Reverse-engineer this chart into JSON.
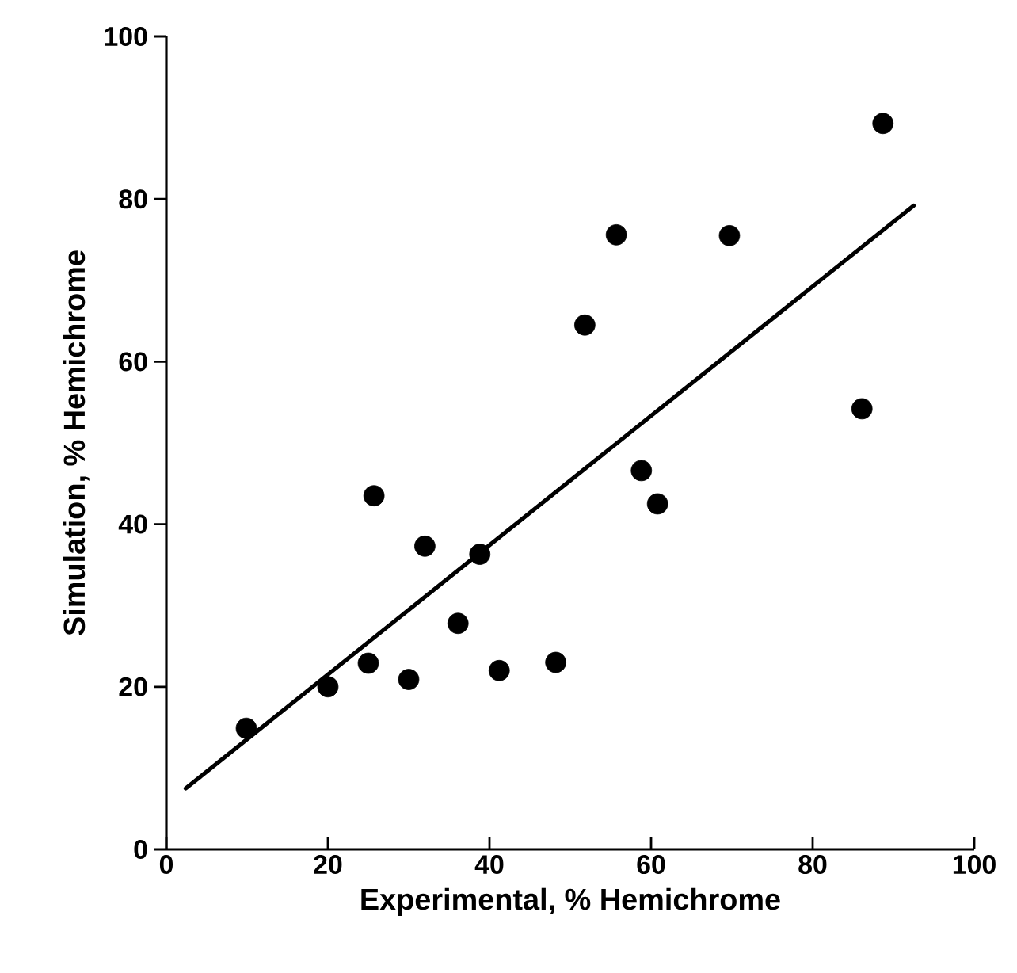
{
  "chart_data": {
    "type": "scatter",
    "xlabel": "Experimental, % Hemichrome",
    "ylabel": "Simulation, % Hemichrome",
    "xlim": [
      0,
      100
    ],
    "ylim": [
      0,
      100
    ],
    "xticks": [
      0,
      20,
      40,
      60,
      80,
      100
    ],
    "yticks": [
      0,
      20,
      40,
      60,
      80,
      100
    ],
    "series": [
      {
        "marker": "circle",
        "color": "#000000",
        "x": [
          9.9,
          20,
          25,
          25.7,
          30,
          32,
          36.1,
          38.8,
          41.2,
          48.2,
          51.8,
          55.7,
          58.8,
          60.8,
          69.7,
          86.1,
          88.7
        ],
        "values": [
          14.9,
          20,
          22.9,
          43.5,
          20.9,
          37.3,
          27.8,
          36.3,
          22.0,
          23.0,
          64.5,
          75.6,
          46.6,
          42.5,
          75.5,
          54.2,
          89.3
        ]
      },
      {
        "type": "line",
        "color": "#000000",
        "line_style": "solid",
        "x": [
          2.4,
          92.5
        ],
        "values": [
          7.5,
          79.2
        ]
      }
    ]
  }
}
